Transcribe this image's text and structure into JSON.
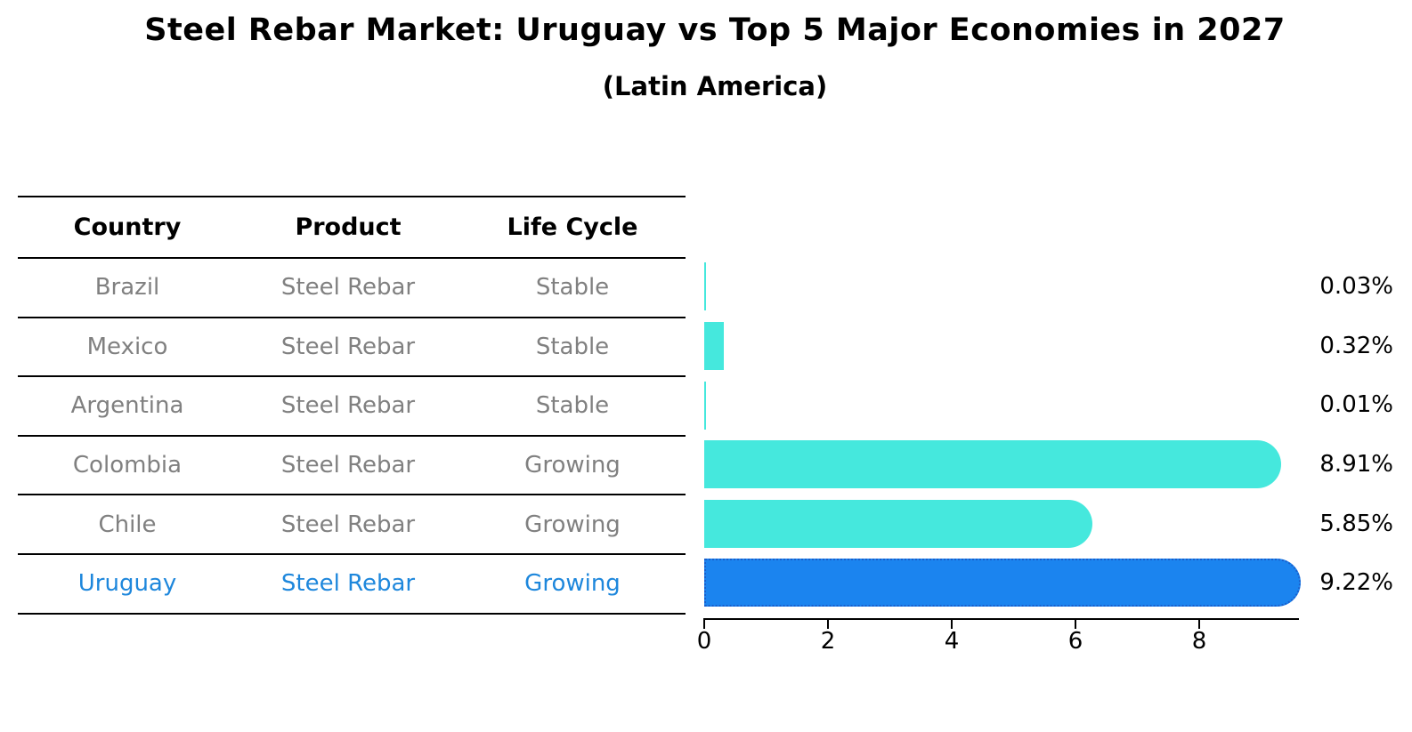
{
  "title": "Steel Rebar Market: Uruguay vs Top 5 Major Economies in 2027",
  "subtitle": "(Latin America)",
  "table": {
    "headers": [
      "Country",
      "Product",
      "Life Cycle"
    ],
    "rows": [
      {
        "country": "Brazil",
        "product": "Steel Rebar",
        "life_cycle": "Stable",
        "highlight": false
      },
      {
        "country": "Mexico",
        "product": "Steel Rebar",
        "life_cycle": "Stable",
        "highlight": false
      },
      {
        "country": "Argentina",
        "product": "Steel Rebar",
        "life_cycle": "Stable",
        "highlight": false
      },
      {
        "country": "Colombia",
        "product": "Steel Rebar",
        "life_cycle": "Growing",
        "highlight": false
      },
      {
        "country": "Chile",
        "product": "Steel Rebar",
        "life_cycle": "Growing",
        "highlight": false
      },
      {
        "country": "Uruguay",
        "product": "Steel Rebar",
        "life_cycle": "Growing",
        "highlight": true
      }
    ]
  },
  "chart_data": {
    "type": "bar",
    "orientation": "horizontal",
    "title": "Steel Rebar Market: Uruguay vs Top 5 Major Economies in 2027",
    "subtitle": "(Latin America)",
    "categories": [
      "Brazil",
      "Mexico",
      "Argentina",
      "Colombia",
      "Chile",
      "Uruguay"
    ],
    "values": [
      0.03,
      0.32,
      0.01,
      8.91,
      5.85,
      9.22
    ],
    "value_labels": [
      "0.03%",
      "0.32%",
      "0.01%",
      "8.91%",
      "5.85%",
      "9.22%"
    ],
    "xlabel": "",
    "ylabel": "",
    "xlim": [
      0,
      9.6
    ],
    "xticks": [
      0,
      2,
      4,
      6,
      8
    ],
    "xtick_labels": [
      "0",
      "2",
      "4",
      "6",
      "8"
    ],
    "grid": false,
    "legend": false,
    "bar_color": "#45e8dd",
    "highlight_index": 5,
    "highlight_bar_color": "#1b84ef",
    "highlight_border_color": "#1a5ecb"
  },
  "colors": {
    "title_text": "#000000",
    "table_row_text": "#808080",
    "highlight_text": "#1e87dc",
    "axis": "#000000"
  }
}
